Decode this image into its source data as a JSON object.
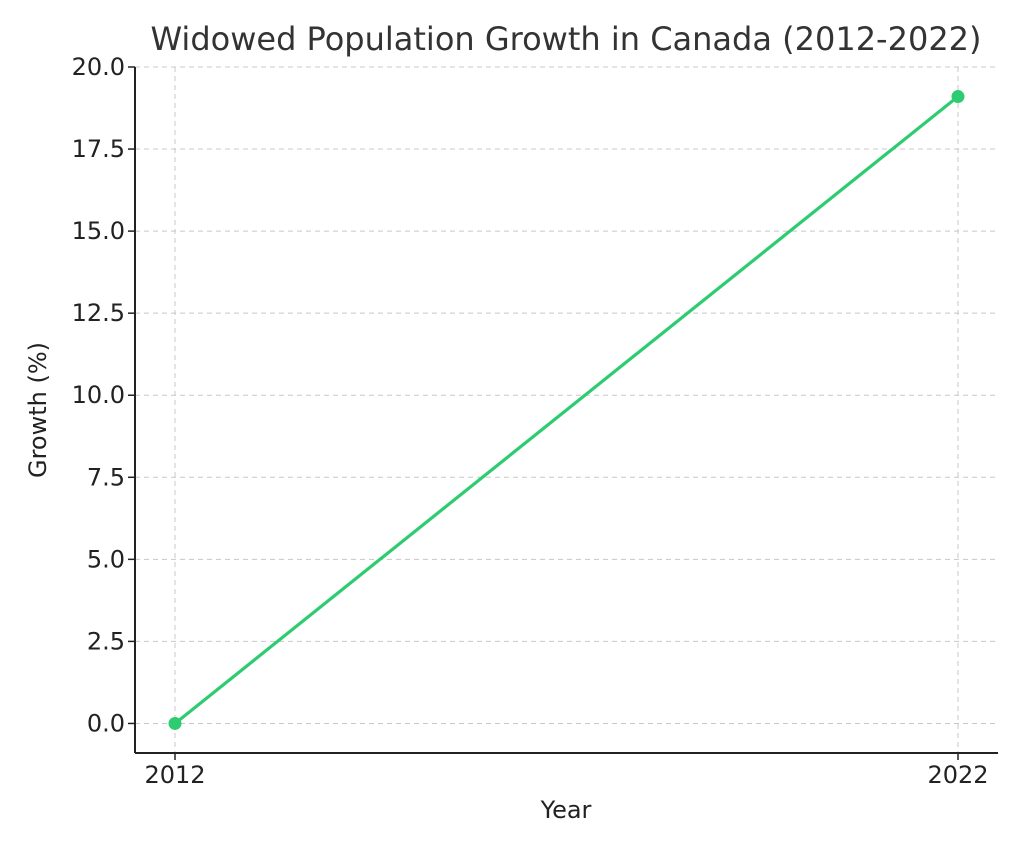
{
  "chart_data": {
    "type": "line",
    "title": "Widowed Population Growth in Canada (2012-2022)",
    "xlabel": "Year",
    "ylabel": "Growth (%)",
    "x": [
      "2012",
      "2022"
    ],
    "series": [
      {
        "values": [
          0.0,
          19.1
        ],
        "color": "#2ecc71"
      }
    ],
    "ylim": [
      -0.9,
      20.0
    ],
    "yticks": [
      "0.0",
      "2.5",
      "5.0",
      "7.5",
      "10.0",
      "12.5",
      "15.0",
      "17.5",
      "20.0"
    ],
    "grid": true,
    "markers": "circle"
  }
}
